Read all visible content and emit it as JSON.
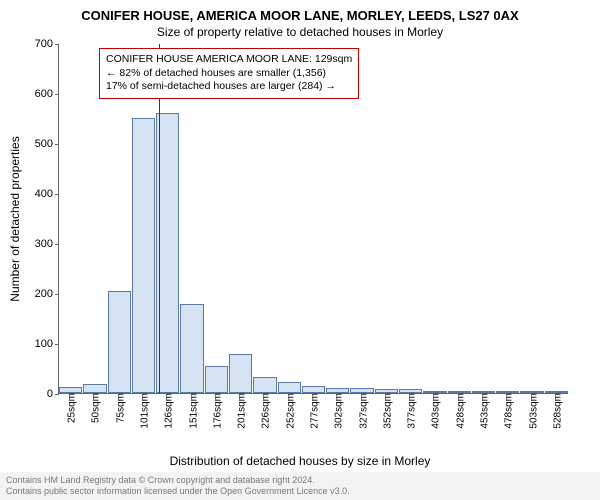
{
  "title_main": "CONIFER HOUSE, AMERICA MOOR LANE, MORLEY, LEEDS, LS27 0AX",
  "title_sub": "Size of property relative to detached houses in Morley",
  "ylabel": "Number of detached properties",
  "xlabel": "Distribution of detached houses by size in Morley",
  "info_box": {
    "line1": "CONIFER HOUSE AMERICA MOOR LANE: 129sqm",
    "line2": "← 82% of detached houses are smaller (1,356)",
    "line3": "17% of semi-detached houses are larger (284) →",
    "border_color": "#c00000"
  },
  "chart": {
    "type": "bar",
    "ymax": 700,
    "yticks": [
      0,
      100,
      200,
      300,
      400,
      500,
      600,
      700
    ],
    "categories": [
      "25sqm",
      "50sqm",
      "75sqm",
      "101sqm",
      "126sqm",
      "151sqm",
      "176sqm",
      "201sqm",
      "226sqm",
      "252sqm",
      "277sqm",
      "302sqm",
      "327sqm",
      "352sqm",
      "377sqm",
      "403sqm",
      "428sqm",
      "453sqm",
      "478sqm",
      "503sqm",
      "528sqm"
    ],
    "values": [
      12,
      18,
      205,
      550,
      560,
      178,
      55,
      78,
      32,
      22,
      15,
      10,
      10,
      8,
      8,
      5,
      5,
      3,
      2,
      2,
      2
    ],
    "bar_fill": "#d5e3f3",
    "bar_stroke": "#5b7ba5",
    "marker_index": 4.12,
    "marker_color": "#c00000",
    "background": "#ffffff",
    "axis_color": "#666666",
    "bar_width_ratio": 1.0
  },
  "footer": {
    "line1": "Contains HM Land Registry data © Crown copyright and database right 2024.",
    "line2": "Contains public sector information licensed under the Open Government Licence v3.0.",
    "bg": "#f3f3f3",
    "color": "#777777"
  },
  "fontsize": {
    "title_main": 13,
    "title_sub": 12,
    "axis_label": 12,
    "tick": 11,
    "xtick": 10,
    "info": 10.5,
    "footer": 9
  }
}
